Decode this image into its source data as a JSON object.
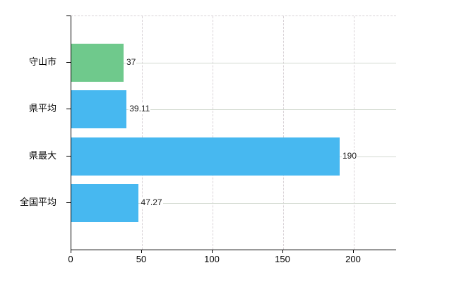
{
  "chart_data": {
    "type": "bar",
    "orientation": "horizontal",
    "title": "",
    "xlabel": "",
    "ylabel": "",
    "categories": [
      "守山市",
      "県平均",
      "県最大",
      "全国平均"
    ],
    "values": [
      37,
      39.11,
      190,
      47.27
    ],
    "value_labels": [
      "37",
      "39.11",
      "190",
      "47.27"
    ],
    "bar_colors": [
      "#6fc98c",
      "#47b8f0",
      "#47b8f0",
      "#47b8f0"
    ],
    "x_ticks": [
      0,
      50,
      100,
      150,
      200
    ],
    "x_tick_labels": [
      "0",
      "50",
      "100",
      "150",
      "200"
    ],
    "xlim": [
      0,
      230
    ],
    "grid": {
      "vertical": "dashed",
      "horizontal": "solid",
      "top_border": "dashed"
    },
    "legend": null,
    "colors": {
      "highlight_bar": "#6fc98c",
      "default_bar": "#47b8f0",
      "axis": "#000000",
      "grid_solid": "#d3dad1",
      "grid_dashed": "#d9d3d7",
      "text": "#000000",
      "background": "#ffffff"
    }
  }
}
